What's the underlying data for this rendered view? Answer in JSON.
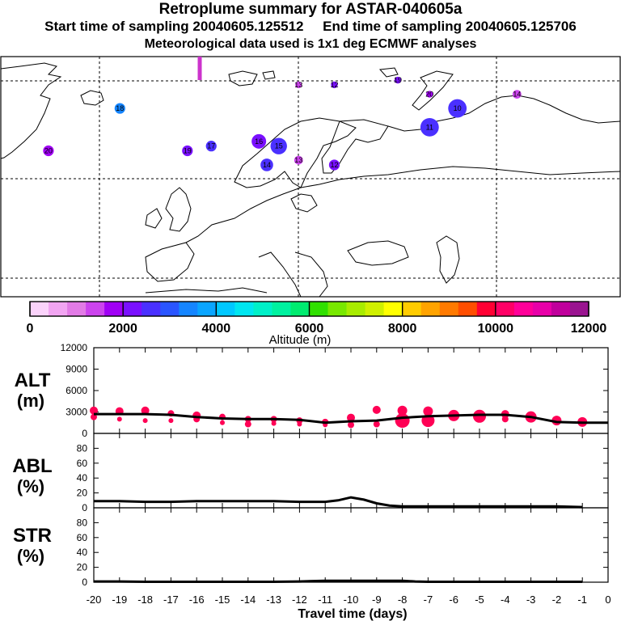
{
  "header": {
    "title": "Retroplume summary for ASTAR-040605a",
    "start_time": "Start time of sampling 20040605.125512",
    "end_time": "End time of sampling 20040605.125706",
    "met_info": "Meteorological data used is 1x1 deg ECMWF analyses"
  },
  "chart_data": [
    {
      "type": "map",
      "name": "retroplume-map",
      "description_units": "plume positions labelled by days back",
      "markers": [
        {
          "label": "18",
          "lon": -30,
          "lat": 75,
          "altitude": 3200,
          "size": 3
        },
        {
          "label": "20",
          "lon": -48,
          "lat": 66,
          "altitude": 1900,
          "size": 3
        },
        {
          "label": "19",
          "lon": -13,
          "lat": 66,
          "altitude": 2300,
          "size": 3
        },
        {
          "label": "17",
          "lon": -7,
          "lat": 67,
          "altitude": 2400,
          "size": 3
        },
        {
          "label": "16",
          "lon": 5,
          "lat": 68,
          "altitude": 2100,
          "size": 5
        },
        {
          "label": "15",
          "lon": 10,
          "lat": 67,
          "altitude": 2500,
          "size": 6
        },
        {
          "label": "14",
          "lon": 7,
          "lat": 63,
          "altitude": 2400,
          "size": 4
        },
        {
          "label": "13",
          "lon": 15,
          "lat": 64,
          "altitude": 1400,
          "size": 2
        },
        {
          "label": "12",
          "lon": 24,
          "lat": 63,
          "altitude": 2000,
          "size": 3
        },
        {
          "label": "11",
          "lon": 48,
          "lat": 71,
          "altitude": 2700,
          "size": 7
        },
        {
          "label": "10",
          "lon": 55,
          "lat": 75,
          "altitude": 2400,
          "size": 7
        },
        {
          "label": "13",
          "lon": 15,
          "lat": 80,
          "altitude": 1400,
          "size": 1
        },
        {
          "label": "12",
          "lon": 24,
          "lat": 80,
          "altitude": 2000,
          "size": 1
        },
        {
          "label": "19",
          "lon": 40,
          "lat": 81,
          "altitude": 2300,
          "size": 1
        },
        {
          "label": "20",
          "lon": 48,
          "lat": 78,
          "altitude": 1900,
          "size": 1
        },
        {
          "label": "14",
          "lon": 70,
          "lat": 78,
          "altitude": 1200,
          "size": 2
        }
      ],
      "receptor": {
        "lon": -10,
        "lat": 82
      }
    },
    {
      "type": "colorbar",
      "name": "altitude-colorbar",
      "xlabel": "Altitude (m)",
      "range": [
        0,
        12000
      ],
      "tick_labels": [
        "0",
        "2000",
        "4000",
        "6000",
        "8000",
        "10000",
        "12000"
      ],
      "colors": [
        "#fbd3fb",
        "#f2a5f2",
        "#e27be6",
        "#cc44ee",
        "#a000f5",
        "#7a10ff",
        "#4a30ff",
        "#2a55ff",
        "#1585ff",
        "#0aa5ff",
        "#00c8ff",
        "#00e6f0",
        "#00f0c8",
        "#00f2a0",
        "#00ec70",
        "#30e000",
        "#78e800",
        "#a8ec00",
        "#d0f000",
        "#ffff00",
        "#ffcc00",
        "#ffa300",
        "#ff7a00",
        "#ff4e00",
        "#ff0033",
        "#ff0066",
        "#ff0099",
        "#e800a8",
        "#c0009c",
        "#9a1490"
      ]
    },
    {
      "type": "line",
      "name": "alt-panel",
      "ylabel_top": "ALT",
      "ylabel_bottom": "(m)",
      "ylim": [
        0,
        12000
      ],
      "yticks": [
        0,
        3000,
        6000,
        9000,
        12000
      ],
      "ytick_labels": [
        "0",
        "3000",
        "6000",
        "9000",
        "12000"
      ],
      "series": [
        {
          "name": "mean altitude",
          "x": [
            -20,
            -19,
            -18,
            -17,
            -16,
            -15,
            -14,
            -13,
            -12,
            -11,
            -10,
            -9,
            -8,
            -7,
            -6,
            -5,
            -4,
            -3,
            -2,
            -1,
            0
          ],
          "values": [
            2700,
            2700,
            2700,
            2600,
            2300,
            2100,
            2000,
            2000,
            1900,
            1500,
            1700,
            1800,
            2200,
            2400,
            2500,
            2600,
            2600,
            2300,
            1600,
            1500,
            1500
          ]
        }
      ],
      "points": [
        {
          "x": -20,
          "y": 3200,
          "r": 5
        },
        {
          "x": -20,
          "y": 2300,
          "r": 4
        },
        {
          "x": -19,
          "y": 3100,
          "r": 5
        },
        {
          "x": -19,
          "y": 2000,
          "r": 3
        },
        {
          "x": -18,
          "y": 3200,
          "r": 5
        },
        {
          "x": -18,
          "y": 1800,
          "r": 3
        },
        {
          "x": -17,
          "y": 2800,
          "r": 4
        },
        {
          "x": -17,
          "y": 1800,
          "r": 3
        },
        {
          "x": -16,
          "y": 2500,
          "r": 5
        },
        {
          "x": -16,
          "y": 2000,
          "r": 4
        },
        {
          "x": -15,
          "y": 2300,
          "r": 4
        },
        {
          "x": -15,
          "y": 1500,
          "r": 3
        },
        {
          "x": -14,
          "y": 2000,
          "r": 4
        },
        {
          "x": -14,
          "y": 1300,
          "r": 4
        },
        {
          "x": -13,
          "y": 2000,
          "r": 4
        },
        {
          "x": -13,
          "y": 1400,
          "r": 3
        },
        {
          "x": -12,
          "y": 1800,
          "r": 4
        },
        {
          "x": -12,
          "y": 1300,
          "r": 3
        },
        {
          "x": -11,
          "y": 1600,
          "r": 4
        },
        {
          "x": -11,
          "y": 1200,
          "r": 3
        },
        {
          "x": -10,
          "y": 2200,
          "r": 5
        },
        {
          "x": -10,
          "y": 1200,
          "r": 4
        },
        {
          "x": -9,
          "y": 3300,
          "r": 5
        },
        {
          "x": -9,
          "y": 1300,
          "r": 4
        },
        {
          "x": -8,
          "y": 3200,
          "r": 6
        },
        {
          "x": -8,
          "y": 1800,
          "r": 9
        },
        {
          "x": -7,
          "y": 3100,
          "r": 6
        },
        {
          "x": -7,
          "y": 1800,
          "r": 8
        },
        {
          "x": -6,
          "y": 2500,
          "r": 7
        },
        {
          "x": -5,
          "y": 2400,
          "r": 8
        },
        {
          "x": -4,
          "y": 2700,
          "r": 5
        },
        {
          "x": -4,
          "y": 2000,
          "r": 4
        },
        {
          "x": -3,
          "y": 2300,
          "r": 7
        },
        {
          "x": -2,
          "y": 1800,
          "r": 6
        },
        {
          "x": -1,
          "y": 1600,
          "r": 6
        }
      ],
      "point_color": "#ff0055"
    },
    {
      "type": "line",
      "name": "abl-panel",
      "ylabel_top": "ABL",
      "ylabel_bottom": "(%)",
      "ylim": [
        0,
        100
      ],
      "yticks": [
        0,
        20,
        40,
        60,
        80
      ],
      "ytick_labels": [
        "0",
        "20",
        "40",
        "60",
        "80"
      ],
      "series": [
        {
          "name": "fraction in boundary layer",
          "x": [
            -20,
            -19,
            -18,
            -17,
            -16,
            -15,
            -14,
            -13,
            -12,
            -11,
            -10.5,
            -10,
            -9.5,
            -9,
            -8.5,
            -8,
            -7,
            -6,
            -5,
            -4,
            -3,
            -2,
            -1
          ],
          "values": [
            9,
            9,
            8,
            8,
            9,
            9,
            9,
            9,
            8,
            8,
            10,
            14,
            11,
            6,
            3,
            2,
            2,
            2,
            2,
            2,
            2,
            2,
            1
          ]
        }
      ]
    },
    {
      "type": "line",
      "name": "str-panel",
      "ylabel_top": "STR",
      "ylabel_bottom": "(%)",
      "ylim": [
        0,
        100
      ],
      "yticks": [
        0,
        20,
        40,
        60,
        80
      ],
      "ytick_labels": [
        "0",
        "20",
        "40",
        "60",
        "80"
      ],
      "xlabel": "Travel time (days)",
      "xlim": [
        -20,
        0
      ],
      "xticks": [
        -20,
        -19,
        -18,
        -17,
        -16,
        -15,
        -14,
        -13,
        -12,
        -11,
        -10,
        -9,
        -8,
        -7,
        -6,
        -5,
        -4,
        -3,
        -2,
        -1,
        0
      ],
      "xtick_labels": [
        "-20",
        "-19",
        "-18",
        "-17",
        "-16",
        "-15",
        "-14",
        "-13",
        "-12",
        "-11",
        "-10",
        "-9",
        "-8",
        "-7",
        "-6",
        "-5",
        "-4",
        "-3",
        "-2",
        "-1",
        "0"
      ],
      "series": [
        {
          "name": "fraction in stratosphere",
          "x": [
            -20,
            -19,
            -18,
            -17,
            -16,
            -15,
            -14,
            -13,
            -12,
            -11,
            -10,
            -9,
            -8,
            -7.5,
            -7,
            -6,
            -5,
            -4,
            -3,
            -2,
            -1
          ],
          "values": [
            1,
            1,
            0.5,
            0.5,
            0.5,
            0.5,
            0.5,
            0.5,
            1,
            2,
            2,
            2,
            2,
            1,
            0.5,
            0.5,
            0.5,
            0.5,
            0.5,
            0.5,
            0.5
          ]
        }
      ]
    }
  ]
}
